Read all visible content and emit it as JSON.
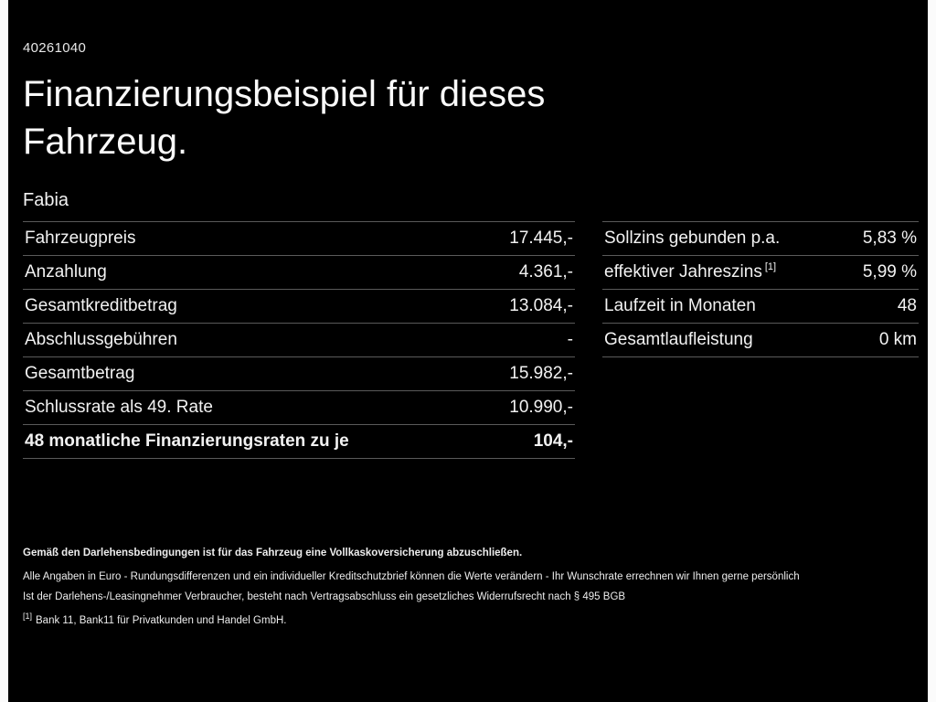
{
  "page": {
    "id_number": "40261040",
    "title": "Finanzierungsbeispiel für dieses Fahrzeug.",
    "model": "Fabia"
  },
  "tables": {
    "left": {
      "rows": [
        {
          "label": "Fahrzeugpreis",
          "value": "17.445,-"
        },
        {
          "label": "Anzahlung",
          "value": "4.361,-"
        },
        {
          "label": "Gesamtkreditbetrag",
          "value": "13.084,-"
        },
        {
          "label": "Abschlussgebühren",
          "value": "-"
        },
        {
          "label": "Gesamtbetrag",
          "value": "15.982,-"
        },
        {
          "label": "Schlussrate als 49. Rate",
          "value": "10.990,-"
        },
        {
          "label": "48 monatliche Finanzierungsraten zu je",
          "value": "104,-"
        }
      ]
    },
    "right": {
      "rows": [
        {
          "label": "Sollzins gebunden p.a.",
          "ref": "",
          "value": "5,83 %"
        },
        {
          "label": "effektiver Jahreszins",
          "ref": "[1]",
          "value": "5,99 %"
        },
        {
          "label": "Laufzeit in Monaten",
          "ref": "",
          "value": "48"
        },
        {
          "label": "Gesamtlaufleistung",
          "ref": "",
          "value": "0 km"
        }
      ]
    }
  },
  "footer": {
    "line_bold": "Gemäß den Darlehensbedingungen ist für das Fahrzeug eine Vollkaskoversicherung abzuschließen.",
    "line2": "Alle Angaben in Euro - Rundungsdifferenzen und ein individueller Kreditschutzbrief können die Werte verändern - Ihr Wunschrate errechnen wir Ihnen gerne persönlich",
    "line3": "Ist der Darlehens-/Leasingnehmer Verbraucher, besteht nach Vertragsabschluss ein gesetzliches Widerrufsrecht nach § 495 BGB",
    "footnote_ref": "[1]",
    "footnote_text": "Bank 11, Bank11 für Privatkunden und Handel GmbH."
  },
  "colors": {
    "background": "#000000",
    "text": "#f2f2f2",
    "divider": "#5a5a5a",
    "edge_strip": "#fbfbfb"
  }
}
